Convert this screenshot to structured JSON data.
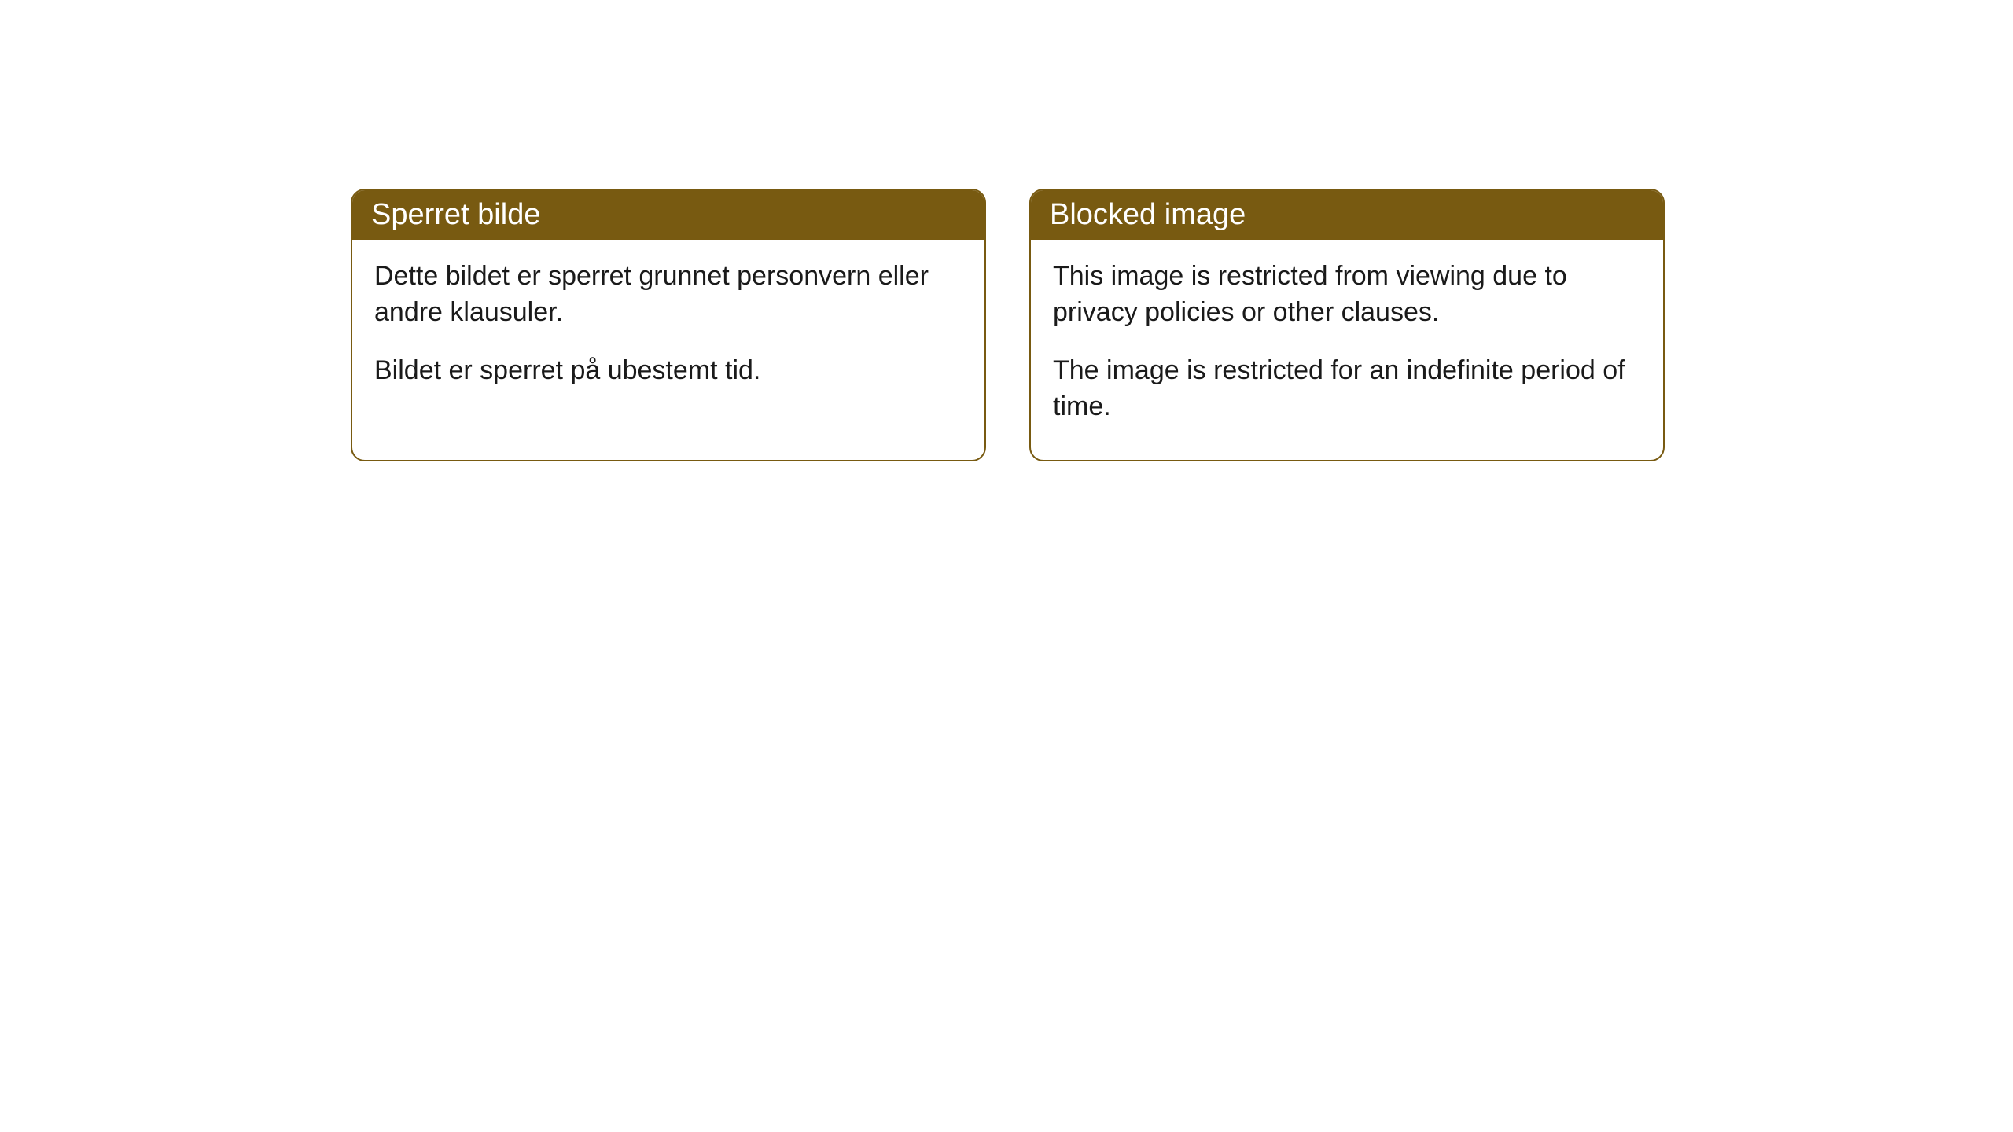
{
  "cards": [
    {
      "title": "Sperret bilde",
      "paragraph1": "Dette bildet er sperret grunnet personvern eller andre klausuler.",
      "paragraph2": "Bildet er sperret på ubestemt tid."
    },
    {
      "title": "Blocked image",
      "paragraph1": "This image is restricted from viewing due to privacy policies or other clauses.",
      "paragraph2": "The image is restricted for an indefinite period of time."
    }
  ],
  "style": {
    "header_bg_color": "#785a11",
    "header_text_color": "#ffffff",
    "border_color": "#785a11",
    "body_text_color": "#1a1a1a",
    "background_color": "#ffffff",
    "border_radius": 18,
    "header_fontsize": 38,
    "body_fontsize": 34
  }
}
